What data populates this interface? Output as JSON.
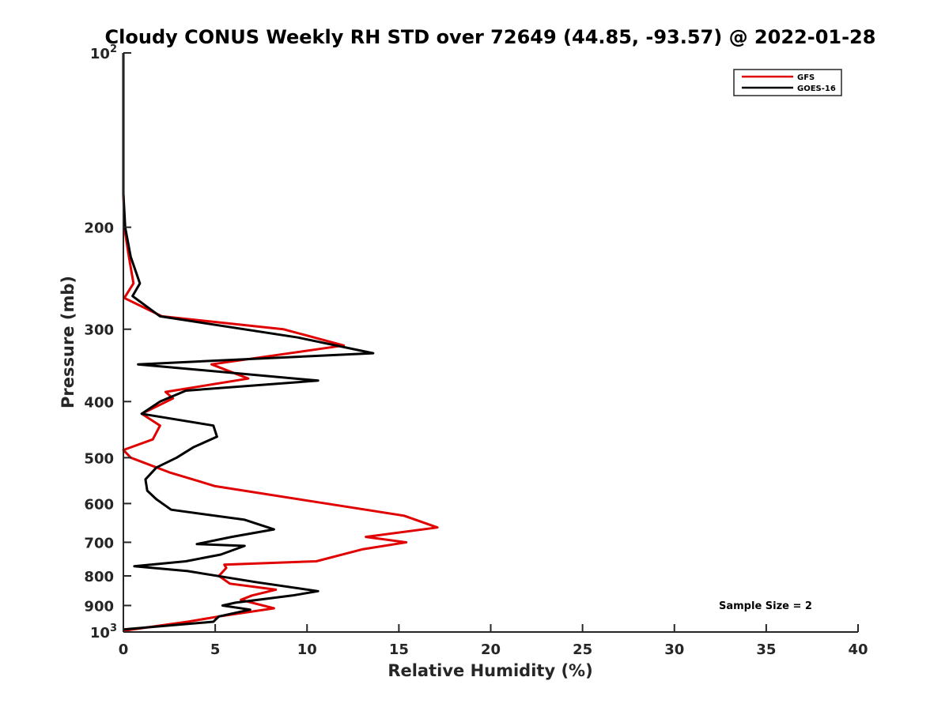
{
  "chart_data": {
    "type": "line",
    "title": "Cloudy CONUS Weekly RH STD over 72649 (44.85, -93.57) @ 2022-01-28",
    "xlabel": "Relative Humidity (%)",
    "ylabel": "Pressure (mb)",
    "xlim": [
      0,
      40
    ],
    "ylim": [
      100,
      1000
    ],
    "y_scale": "log",
    "y_reversed": true,
    "x_ticks": [
      0,
      5,
      10,
      15,
      20,
      25,
      30,
      35,
      40
    ],
    "x_tick_labels": [
      "0",
      "5",
      "10",
      "15",
      "20",
      "25",
      "30",
      "35",
      "40"
    ],
    "y_ticks": [
      100,
      200,
      300,
      400,
      500,
      600,
      700,
      800,
      900,
      1000
    ],
    "y_tick_labels": [
      {
        "base": "10",
        "exp": "2"
      },
      {
        "base": "200",
        "exp": ""
      },
      {
        "base": "300",
        "exp": ""
      },
      {
        "base": "400",
        "exp": ""
      },
      {
        "base": "500",
        "exp": ""
      },
      {
        "base": "600",
        "exp": ""
      },
      {
        "base": "700",
        "exp": ""
      },
      {
        "base": "800",
        "exp": ""
      },
      {
        "base": "900",
        "exp": ""
      },
      {
        "base": "10",
        "exp": "3"
      }
    ],
    "grid": false,
    "legend_position": "top-right",
    "annotation": "Sample Size = 2",
    "series": [
      {
        "name": "GFS",
        "color": "#e00000",
        "points": [
          [
            0.0,
            100
          ],
          [
            0.0,
            125
          ],
          [
            0.0,
            150
          ],
          [
            0.0,
            175
          ],
          [
            0.05,
            200
          ],
          [
            0.3,
            225
          ],
          [
            0.55,
            250
          ],
          [
            0.05,
            265
          ],
          [
            2.1,
            285
          ],
          [
            8.7,
            300
          ],
          [
            12.0,
            320
          ],
          [
            4.8,
            345
          ],
          [
            6.8,
            365
          ],
          [
            2.3,
            385
          ],
          [
            2.7,
            395
          ],
          [
            1.0,
            420
          ],
          [
            2.0,
            440
          ],
          [
            1.6,
            465
          ],
          [
            0.0,
            485
          ],
          [
            0.4,
            500
          ],
          [
            2.5,
            530
          ],
          [
            5.0,
            560
          ],
          [
            10.3,
            595
          ],
          [
            15.3,
            630
          ],
          [
            17.1,
            660
          ],
          [
            13.2,
            685
          ],
          [
            15.4,
            700
          ],
          [
            13.0,
            720
          ],
          [
            10.5,
            755
          ],
          [
            5.5,
            765
          ],
          [
            5.6,
            775
          ],
          [
            5.2,
            800
          ],
          [
            5.8,
            825
          ],
          [
            8.3,
            845
          ],
          [
            7.0,
            865
          ],
          [
            6.4,
            880
          ],
          [
            8.2,
            910
          ],
          [
            5.2,
            940
          ],
          [
            3.5,
            960
          ],
          [
            0.0,
            995
          ]
        ]
      },
      {
        "name": "GOES-16",
        "color": "#000000",
        "points": [
          [
            0.0,
            100
          ],
          [
            0.0,
            125
          ],
          [
            0.0,
            150
          ],
          [
            0.0,
            175
          ],
          [
            0.1,
            200
          ],
          [
            0.4,
            225
          ],
          [
            0.9,
            250
          ],
          [
            0.5,
            263
          ],
          [
            2.0,
            285
          ],
          [
            9.5,
            310
          ],
          [
            13.6,
            330
          ],
          [
            0.8,
            345
          ],
          [
            10.6,
            368
          ],
          [
            3.4,
            383
          ],
          [
            2.0,
            400
          ],
          [
            1.0,
            420
          ],
          [
            4.9,
            440
          ],
          [
            5.1,
            460
          ],
          [
            3.8,
            480
          ],
          [
            2.9,
            500
          ],
          [
            1.8,
            520
          ],
          [
            1.2,
            545
          ],
          [
            1.3,
            570
          ],
          [
            1.8,
            590
          ],
          [
            2.6,
            615
          ],
          [
            6.6,
            640
          ],
          [
            8.2,
            665
          ],
          [
            5.9,
            685
          ],
          [
            4.0,
            705
          ],
          [
            6.6,
            710
          ],
          [
            5.3,
            735
          ],
          [
            3.4,
            755
          ],
          [
            0.6,
            770
          ],
          [
            3.5,
            785
          ],
          [
            7.2,
            820
          ],
          [
            10.6,
            850
          ],
          [
            9.2,
            865
          ],
          [
            6.1,
            890
          ],
          [
            5.4,
            900
          ],
          [
            6.9,
            915
          ],
          [
            5.2,
            940
          ],
          [
            4.9,
            960
          ],
          [
            0.0,
            990
          ]
        ]
      }
    ]
  }
}
